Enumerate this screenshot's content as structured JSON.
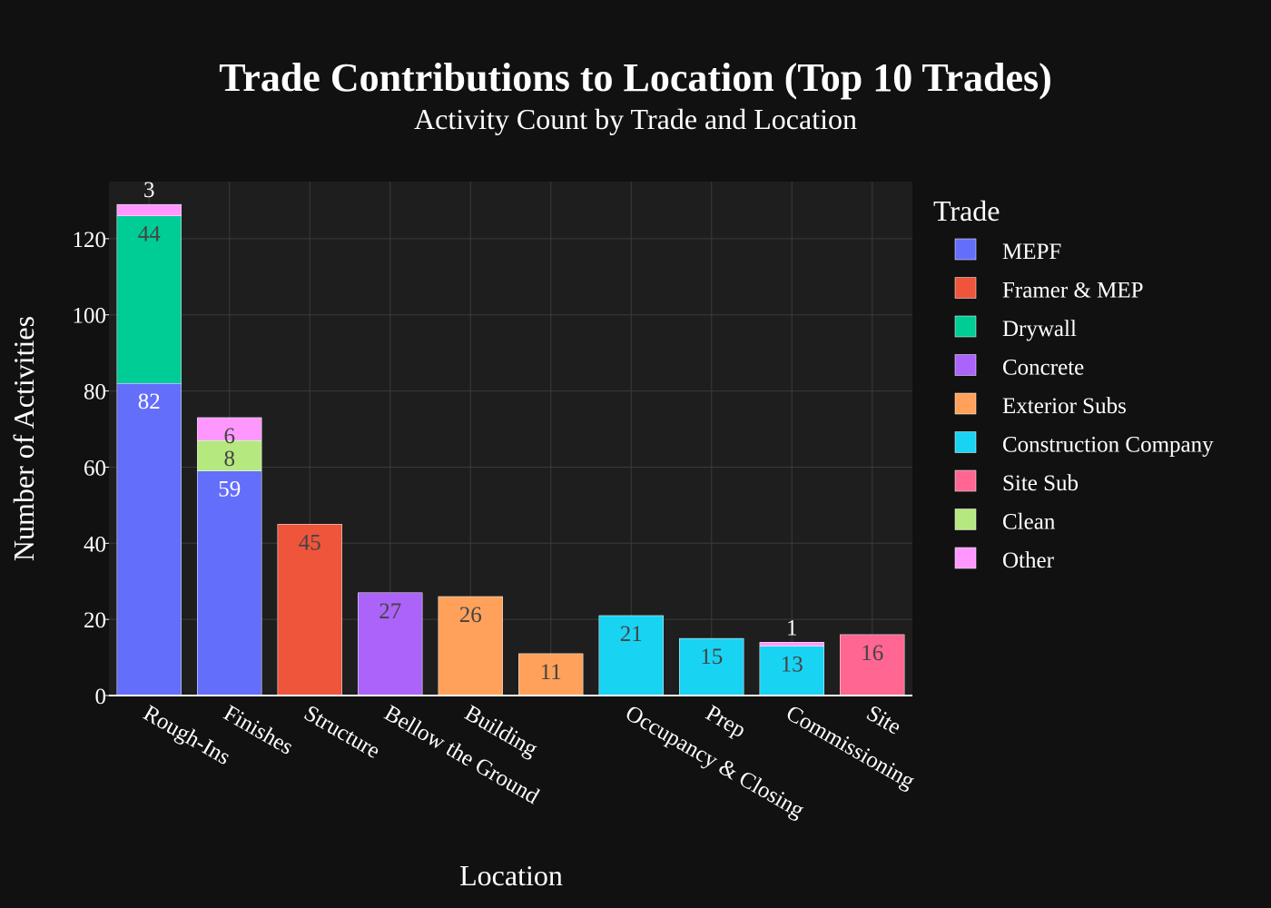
{
  "chart_data": {
    "type": "bar",
    "barmode": "stack",
    "title": "Trade Contributions to Location (Top 10 Trades)",
    "subtitle": "Activity Count by Trade and Location",
    "xlabel": "Location",
    "ylabel": "Number of Activities",
    "ylim": [
      0,
      135
    ],
    "yticks": [
      0,
      20,
      40,
      60,
      80,
      100,
      120
    ],
    "grid": true,
    "legend_title": "Trade",
    "legend_position": "right",
    "categories": [
      "Rough-Ins",
      "Finishes",
      "Structure",
      "Bellow the Ground",
      "Building",
      "",
      "Occupancy & Closing",
      "Prep",
      "Commissioning",
      "Site"
    ],
    "series": [
      {
        "name": "MEPF",
        "color": "#636efa",
        "values": [
          82,
          59,
          null,
          null,
          null,
          null,
          null,
          null,
          null,
          null
        ]
      },
      {
        "name": "Framer & MEP",
        "color": "#ef553b",
        "values": [
          null,
          null,
          45,
          null,
          null,
          null,
          null,
          null,
          null,
          null
        ]
      },
      {
        "name": "Drywall",
        "color": "#00cc96",
        "values": [
          44,
          null,
          null,
          null,
          null,
          null,
          null,
          null,
          null,
          null
        ]
      },
      {
        "name": "Concrete",
        "color": "#ab63fa",
        "values": [
          null,
          null,
          null,
          27,
          null,
          null,
          null,
          null,
          null,
          null
        ]
      },
      {
        "name": "Exterior Subs",
        "color": "#ffa15a",
        "values": [
          null,
          null,
          null,
          null,
          26,
          11,
          null,
          null,
          null,
          null
        ]
      },
      {
        "name": "Construction Company",
        "color": "#19d3f3",
        "values": [
          null,
          null,
          null,
          null,
          null,
          null,
          21,
          15,
          13,
          null
        ]
      },
      {
        "name": "Site Sub",
        "color": "#ff6692",
        "values": [
          null,
          null,
          null,
          null,
          null,
          null,
          null,
          null,
          null,
          16
        ]
      },
      {
        "name": "Clean",
        "color": "#b6e880",
        "values": [
          null,
          8,
          null,
          null,
          null,
          null,
          null,
          null,
          null,
          null
        ]
      },
      {
        "name": "Other",
        "color": "#ff97ff",
        "values": [
          3,
          6,
          null,
          null,
          null,
          null,
          null,
          null,
          1,
          null
        ]
      }
    ]
  }
}
